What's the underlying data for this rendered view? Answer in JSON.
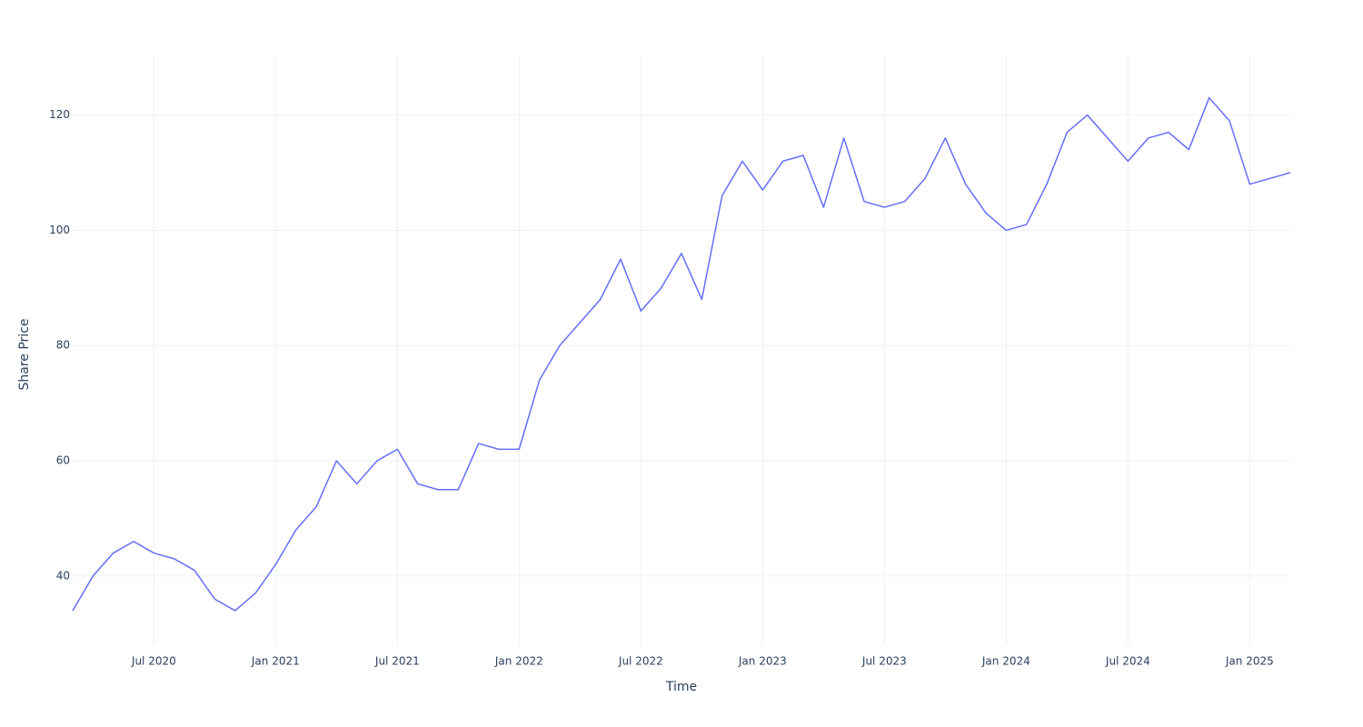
{
  "chart_data": {
    "type": "line",
    "x_label": "Time",
    "y_label": "Share Price",
    "x": [
      "2020-03",
      "2020-04",
      "2020-05",
      "2020-06",
      "2020-07",
      "2020-08",
      "2020-09",
      "2020-10",
      "2020-11",
      "2020-12",
      "2021-01",
      "2021-02",
      "2021-03",
      "2021-04",
      "2021-05",
      "2021-06",
      "2021-07",
      "2021-08",
      "2021-09",
      "2021-10",
      "2021-11",
      "2021-12",
      "2022-01",
      "2022-02",
      "2022-03",
      "2022-04",
      "2022-05",
      "2022-06",
      "2022-07",
      "2022-08",
      "2022-09",
      "2022-10",
      "2022-11",
      "2022-12",
      "2023-01",
      "2023-02",
      "2023-03",
      "2023-04",
      "2023-05",
      "2023-06",
      "2023-07",
      "2023-08",
      "2023-09",
      "2023-10",
      "2023-11",
      "2023-12",
      "2024-01",
      "2024-02",
      "2024-03",
      "2024-04",
      "2024-05",
      "2024-06",
      "2024-07",
      "2024-08",
      "2024-09",
      "2024-10",
      "2024-11",
      "2024-12",
      "2025-01",
      "2025-02",
      "2025-03"
    ],
    "series": [
      {
        "color": "#636efa",
        "values": [
          34,
          40,
          44,
          46,
          44,
          43,
          41,
          36,
          34,
          37,
          42,
          48,
          52,
          60,
          56,
          60,
          62,
          56,
          55,
          55,
          63,
          62,
          62,
          74,
          80,
          84,
          88,
          95,
          86,
          90,
          96,
          88,
          106,
          112,
          107,
          112,
          113,
          104,
          116,
          105,
          104,
          105,
          109,
          116,
          108,
          103,
          100,
          101,
          108,
          117,
          120,
          116,
          112,
          116,
          117,
          114,
          123,
          119,
          108,
          109,
          110
        ]
      }
    ],
    "xlim": [
      "2020-03",
      "2025-03"
    ],
    "xticks": [
      {
        "value": "2020-07",
        "label": "Jul 2020"
      },
      {
        "value": "2021-01",
        "label": "Jan 2021"
      },
      {
        "value": "2021-07",
        "label": "Jul 2021"
      },
      {
        "value": "2022-01",
        "label": "Jan 2022"
      },
      {
        "value": "2022-07",
        "label": "Jul 2022"
      },
      {
        "value": "2023-01",
        "label": "Jan 2023"
      },
      {
        "value": "2023-07",
        "label": "Jul 2023"
      },
      {
        "value": "2024-01",
        "label": "Jan 2024"
      },
      {
        "value": "2024-07",
        "label": "Jul 2024"
      },
      {
        "value": "2025-01",
        "label": "Jan 2025"
      }
    ],
    "ylim": [
      28,
      130.5
    ],
    "yticks": [
      40,
      60,
      80,
      100,
      120
    ],
    "grid": true
  }
}
